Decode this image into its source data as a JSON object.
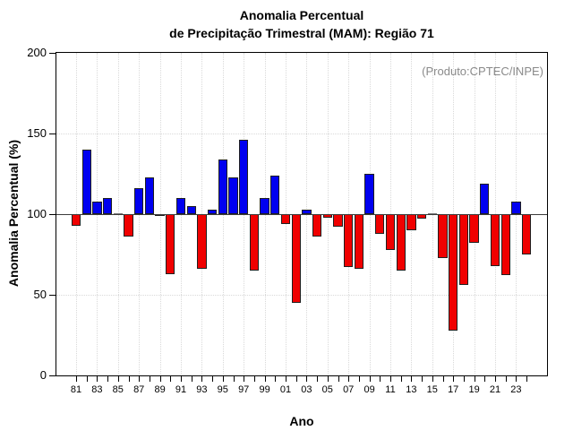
{
  "title": {
    "line1": "Anomalia Percentual",
    "line2": "de Precipitação Trimestral (MAM): Região 71"
  },
  "annotation": "(Produto:CPTEC/INPE)",
  "axes": {
    "y_label": "Anomalia Percentual (%)",
    "x_label": "Ano",
    "y_ticks": [
      0,
      50,
      100,
      150,
      200
    ],
    "x_tick_labels": [
      "81",
      "83",
      "85",
      "87",
      "89",
      "91",
      "93",
      "95",
      "97",
      "99",
      "01",
      "03",
      "05",
      "07",
      "09",
      "11",
      "13",
      "15",
      "17",
      "19",
      "21",
      "23"
    ],
    "ylim": [
      0,
      200
    ],
    "baseline": 100
  },
  "colors": {
    "above_baseline": "#0000f0",
    "below_baseline": "#f00000",
    "bar_border": "#1f1f1f",
    "grid": "#d9d9d9",
    "baseline_line": "#3c3c3c",
    "annotation_text": "#8a8a8a",
    "axis_text": "#000000"
  },
  "chart_data": {
    "type": "bar",
    "title": "Anomalia Percentual de Precipitação Trimestral (MAM): Região 71",
    "xlabel": "Ano",
    "ylabel": "Anomalia Percentual (%)",
    "ylim": [
      0,
      200
    ],
    "baseline": 100,
    "legend": "none",
    "grid": "dotted horizontal at 50 and 150, dotted vertical at labeled (odd) years",
    "color_rule": "bars above 100 are blue, below 100 are red",
    "categories": [
      "81",
      "82",
      "83",
      "84",
      "85",
      "86",
      "87",
      "88",
      "89",
      "90",
      "91",
      "92",
      "93",
      "94",
      "95",
      "96",
      "97",
      "98",
      "99",
      "00",
      "01",
      "02",
      "03",
      "04",
      "05",
      "06",
      "07",
      "08",
      "09",
      "10",
      "11",
      "12",
      "13",
      "14",
      "15",
      "16",
      "17",
      "18",
      "19",
      "20",
      "21",
      "22",
      "23",
      "24"
    ],
    "values": [
      93,
      140,
      108,
      110,
      100,
      86,
      116,
      123,
      99,
      63,
      110,
      105,
      66,
      103,
      134,
      123,
      146,
      65,
      110,
      124,
      94,
      45,
      103,
      86,
      98,
      92,
      67,
      66,
      125,
      88,
      78,
      65,
      90,
      97,
      100,
      73,
      28,
      56,
      82,
      119,
      68,
      62,
      108,
      75
    ]
  }
}
